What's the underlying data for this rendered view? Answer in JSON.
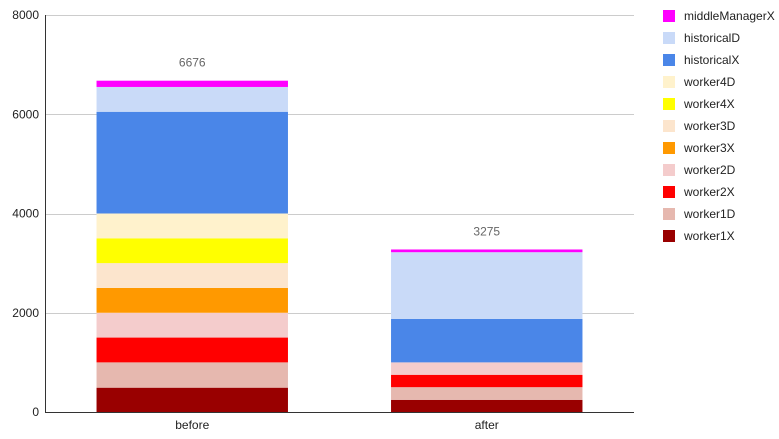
{
  "chart_data": {
    "type": "bar",
    "stacked": true,
    "categories": [
      "before",
      "after"
    ],
    "ylim": [
      0,
      8000
    ],
    "yticks": [
      0,
      2000,
      4000,
      6000,
      8000
    ],
    "grid": true,
    "legend_position": "right",
    "totals": [
      6676,
      3275
    ],
    "total_labels": [
      "6676",
      "3275"
    ],
    "series": [
      {
        "name": "worker1X",
        "color": "#990000",
        "values": [
          490,
          245
        ]
      },
      {
        "name": "worker1D",
        "color": "#e6b8af",
        "values": [
          510,
          255
        ]
      },
      {
        "name": "worker2X",
        "color": "#ff0000",
        "values": [
          500,
          250
        ]
      },
      {
        "name": "worker2D",
        "color": "#f4cccc",
        "values": [
          500,
          250
        ]
      },
      {
        "name": "worker3X",
        "color": "#ff9900",
        "values": [
          500,
          0
        ]
      },
      {
        "name": "worker3D",
        "color": "#fce5cd",
        "values": [
          500,
          0
        ]
      },
      {
        "name": "worker4X",
        "color": "#ffff00",
        "values": [
          500,
          0
        ]
      },
      {
        "name": "worker4D",
        "color": "#fff2cc",
        "values": [
          500,
          0
        ]
      },
      {
        "name": "historicalX",
        "color": "#4a86e8",
        "values": [
          2050,
          875
        ]
      },
      {
        "name": "historicalD",
        "color": "#c9daf8",
        "values": [
          500,
          1345
        ]
      },
      {
        "name": "middleManagerX",
        "color": "#ff00ff",
        "values": [
          126,
          55
        ]
      }
    ]
  }
}
